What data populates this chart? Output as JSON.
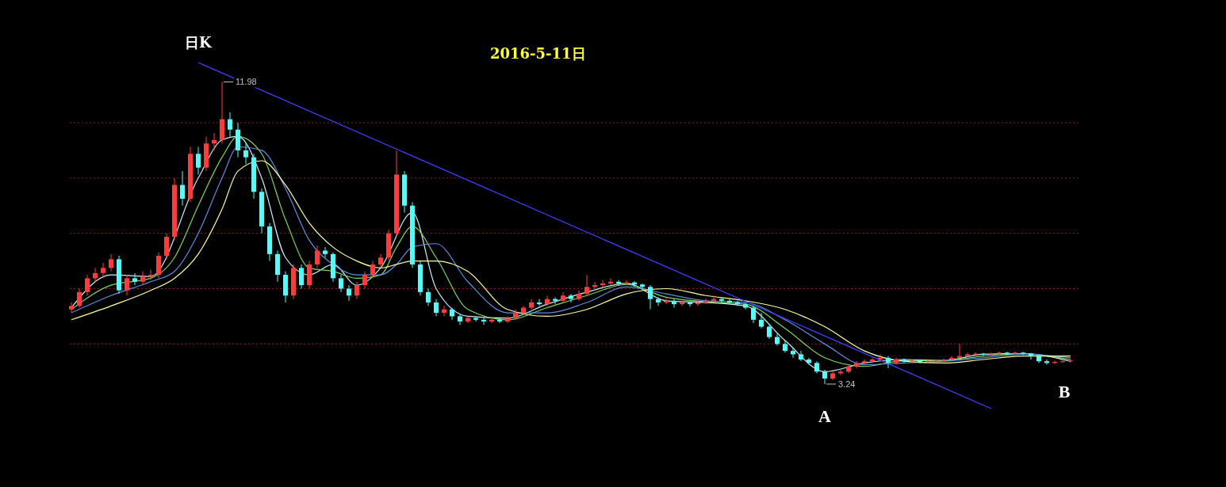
{
  "chart_data": {
    "type": "candlestick",
    "title": "日K",
    "subtitle": "2016-5-11日",
    "categories": [
      null,
      null,
      null,
      null,
      null,
      null,
      null,
      null,
      null,
      null,
      null,
      null,
      null,
      null,
      null,
      null,
      null,
      null,
      null,
      null,
      null,
      null,
      null,
      null,
      null,
      null,
      null,
      null,
      null,
      null,
      null,
      null,
      null,
      null,
      null,
      null,
      null,
      null,
      null,
      null,
      null,
      null,
      null,
      null,
      null,
      null,
      null,
      null,
      null,
      null,
      null,
      null,
      null,
      null,
      null,
      null,
      null,
      null,
      null,
      null,
      null,
      null,
      null,
      null,
      null,
      null,
      null,
      null,
      null,
      null,
      null,
      null,
      null,
      null,
      null,
      null,
      null,
      null,
      null,
      null,
      null,
      null,
      null,
      null,
      null,
      null,
      null,
      null,
      null,
      null,
      null,
      null,
      null,
      null,
      null,
      null,
      null,
      null,
      null,
      null,
      null,
      null,
      null,
      null,
      null,
      null,
      null,
      null,
      null,
      null,
      null,
      null,
      null,
      null,
      null,
      null,
      null,
      null,
      null,
      null,
      null,
      null,
      null,
      null,
      null,
      null,
      null
    ],
    "ohlc": [
      [
        5.4,
        5.6,
        5.3,
        5.5
      ],
      [
        5.5,
        6.0,
        5.45,
        5.9
      ],
      [
        5.9,
        6.4,
        5.8,
        6.3
      ],
      [
        6.3,
        6.6,
        6.2,
        6.45
      ],
      [
        6.45,
        6.75,
        6.3,
        6.6
      ],
      [
        6.6,
        7.0,
        6.5,
        6.85
      ],
      [
        6.85,
        6.95,
        5.85,
        5.95
      ],
      [
        5.95,
        6.4,
        5.8,
        6.3
      ],
      [
        6.3,
        6.45,
        6.1,
        6.2
      ],
      [
        6.2,
        6.5,
        6.1,
        6.35
      ],
      [
        6.35,
        6.55,
        6.25,
        6.4
      ],
      [
        6.4,
        7.05,
        6.3,
        6.95
      ],
      [
        6.95,
        7.6,
        6.85,
        7.5
      ],
      [
        7.5,
        9.2,
        7.4,
        9.0
      ],
      [
        9.0,
        9.4,
        8.4,
        8.6
      ],
      [
        8.6,
        10.1,
        8.5,
        9.9
      ],
      [
        9.9,
        10.1,
        9.3,
        9.5
      ],
      [
        9.5,
        10.4,
        9.4,
        10.2
      ],
      [
        10.2,
        10.5,
        10.0,
        10.3
      ],
      [
        10.3,
        11.98,
        10.2,
        10.9
      ],
      [
        10.9,
        11.1,
        10.4,
        10.6
      ],
      [
        10.6,
        10.8,
        9.8,
        10.0
      ],
      [
        10.0,
        10.2,
        9.6,
        9.8
      ],
      [
        9.8,
        9.9,
        8.6,
        8.8
      ],
      [
        8.8,
        8.9,
        7.6,
        7.8
      ],
      [
        7.8,
        7.9,
        6.8,
        7.0
      ],
      [
        7.0,
        7.1,
        6.2,
        6.4
      ],
      [
        6.4,
        6.5,
        5.6,
        5.8
      ],
      [
        5.8,
        6.7,
        5.7,
        6.6
      ],
      [
        6.6,
        6.7,
        6.0,
        6.1
      ],
      [
        6.1,
        6.8,
        6.0,
        6.7
      ],
      [
        6.7,
        7.25,
        6.6,
        7.1
      ],
      [
        7.1,
        7.2,
        6.9,
        7.0
      ],
      [
        7.0,
        7.05,
        6.2,
        6.3
      ],
      [
        6.3,
        6.4,
        5.9,
        6.0
      ],
      [
        6.0,
        6.1,
        5.65,
        5.8
      ],
      [
        5.8,
        6.2,
        5.7,
        6.1
      ],
      [
        6.1,
        6.5,
        6.0,
        6.4
      ],
      [
        6.4,
        6.8,
        6.3,
        6.7
      ],
      [
        6.7,
        7.0,
        6.6,
        6.9
      ],
      [
        6.9,
        7.7,
        6.8,
        7.6
      ],
      [
        7.6,
        9.99,
        7.5,
        9.3
      ],
      [
        9.3,
        9.4,
        8.2,
        8.4
      ],
      [
        8.4,
        8.5,
        6.6,
        6.7
      ],
      [
        6.7,
        6.8,
        5.8,
        5.9
      ],
      [
        5.9,
        6.0,
        5.5,
        5.6
      ],
      [
        5.6,
        5.7,
        5.2,
        5.3
      ],
      [
        5.3,
        5.5,
        5.2,
        5.4
      ],
      [
        5.4,
        5.45,
        5.1,
        5.2
      ],
      [
        5.2,
        5.25,
        4.95,
        5.05
      ],
      [
        5.05,
        5.2,
        5.0,
        5.15
      ],
      [
        5.15,
        5.2,
        5.05,
        5.1
      ],
      [
        5.1,
        5.15,
        4.95,
        5.05
      ],
      [
        5.05,
        5.15,
        5.0,
        5.1
      ],
      [
        5.1,
        5.15,
        5.0,
        5.05
      ],
      [
        5.05,
        5.2,
        5.0,
        5.15
      ],
      [
        5.15,
        5.4,
        5.1,
        5.3
      ],
      [
        5.3,
        5.5,
        5.25,
        5.45
      ],
      [
        5.45,
        5.7,
        5.4,
        5.6
      ],
      [
        5.6,
        5.7,
        5.5,
        5.55
      ],
      [
        5.55,
        5.8,
        5.5,
        5.7
      ],
      [
        5.7,
        5.75,
        5.55,
        5.65
      ],
      [
        5.65,
        5.9,
        5.6,
        5.8
      ],
      [
        5.8,
        5.85,
        5.6,
        5.7
      ],
      [
        5.7,
        5.95,
        5.65,
        5.85
      ],
      [
        5.85,
        6.4,
        5.8,
        6.05
      ],
      [
        6.05,
        6.2,
        5.95,
        6.1
      ],
      [
        6.1,
        6.25,
        6.05,
        6.15
      ],
      [
        6.15,
        6.3,
        6.1,
        6.2
      ],
      [
        6.2,
        6.25,
        6.1,
        6.15
      ],
      [
        6.15,
        6.25,
        6.1,
        6.18
      ],
      [
        6.18,
        6.22,
        6.05,
        6.12
      ],
      [
        6.12,
        6.15,
        6.0,
        6.05
      ],
      [
        6.05,
        6.1,
        5.4,
        5.7
      ],
      [
        5.7,
        5.75,
        5.5,
        5.6
      ],
      [
        5.6,
        5.72,
        5.55,
        5.65
      ],
      [
        5.65,
        5.7,
        5.45,
        5.55
      ],
      [
        5.55,
        5.65,
        5.5,
        5.6
      ],
      [
        5.6,
        5.62,
        5.48,
        5.55
      ],
      [
        5.55,
        5.65,
        5.5,
        5.6
      ],
      [
        5.6,
        5.72,
        5.55,
        5.65
      ],
      [
        5.65,
        5.8,
        5.6,
        5.7
      ],
      [
        5.7,
        5.75,
        5.6,
        5.65
      ],
      [
        5.65,
        5.7,
        5.55,
        5.6
      ],
      [
        5.6,
        5.65,
        5.5,
        5.55
      ],
      [
        5.55,
        5.6,
        5.4,
        5.45
      ],
      [
        5.45,
        5.5,
        5.0,
        5.1
      ],
      [
        5.1,
        5.3,
        4.85,
        4.9
      ],
      [
        4.9,
        4.95,
        4.55,
        4.6
      ],
      [
        4.6,
        4.7,
        4.35,
        4.4
      ],
      [
        4.4,
        4.5,
        4.15,
        4.2
      ],
      [
        4.2,
        4.3,
        4.0,
        4.1
      ],
      [
        4.1,
        4.2,
        3.9,
        3.95
      ],
      [
        3.95,
        4.0,
        3.8,
        3.85
      ],
      [
        3.85,
        3.9,
        3.55,
        3.6
      ],
      [
        3.6,
        3.65,
        3.24,
        3.4
      ],
      [
        3.4,
        3.6,
        3.35,
        3.55
      ],
      [
        3.55,
        3.65,
        3.5,
        3.6
      ],
      [
        3.6,
        3.8,
        3.55,
        3.75
      ],
      [
        3.75,
        3.9,
        3.7,
        3.85
      ],
      [
        3.85,
        3.95,
        3.8,
        3.9
      ],
      [
        3.9,
        4.0,
        3.85,
        3.95
      ],
      [
        3.95,
        4.1,
        3.9,
        4.0
      ],
      [
        4.0,
        4.05,
        3.7,
        3.85
      ],
      [
        3.85,
        4.0,
        3.8,
        3.95
      ],
      [
        3.95,
        3.98,
        3.85,
        3.9
      ],
      [
        3.9,
        3.95,
        3.86,
        3.92
      ],
      [
        3.92,
        3.94,
        3.84,
        3.88
      ],
      [
        3.88,
        3.94,
        3.85,
        3.9
      ],
      [
        3.9,
        3.95,
        3.87,
        3.92
      ],
      [
        3.92,
        3.98,
        3.9,
        3.95
      ],
      [
        3.95,
        4.05,
        3.92,
        4.0
      ],
      [
        4.0,
        4.4,
        3.98,
        4.05
      ],
      [
        4.05,
        4.15,
        4.02,
        4.1
      ],
      [
        4.1,
        4.16,
        4.08,
        4.12
      ],
      [
        4.12,
        4.14,
        4.06,
        4.1
      ],
      [
        4.1,
        4.15,
        4.08,
        4.12
      ],
      [
        4.12,
        4.18,
        4.1,
        4.15
      ],
      [
        4.15,
        4.17,
        4.08,
        4.12
      ],
      [
        4.12,
        4.18,
        4.1,
        4.15
      ],
      [
        4.15,
        4.17,
        4.08,
        4.12
      ],
      [
        4.12,
        4.14,
        3.95,
        4.05
      ],
      [
        4.05,
        4.08,
        3.85,
        3.9
      ],
      [
        3.9,
        3.95,
        3.8,
        3.85
      ],
      [
        3.85,
        3.92,
        3.82,
        3.88
      ],
      [
        3.88,
        3.94,
        3.85,
        3.9
      ],
      [
        3.9,
        3.96,
        3.86,
        3.92
      ]
    ],
    "series": [
      {
        "type": "line",
        "color": "#c8f0ff",
        "values": [
          5.45,
          null,
          null,
          null,
          null,
          6.4,
          null,
          null,
          null,
          null,
          6.35,
          null,
          null,
          null,
          null,
          null,
          9.2,
          null,
          null,
          10.3,
          null,
          10.4,
          null,
          null,
          9.2,
          null,
          null,
          6.9,
          null,
          null,
          6.4,
          null,
          null,
          6.7,
          null,
          null,
          6.1,
          null,
          null,
          6.6,
          null,
          null,
          null,
          8.2,
          null,
          null,
          6.0,
          null,
          null,
          null,
          5.2,
          null,
          null,
          null,
          null,
          5.15,
          null,
          null,
          null,
          null,
          5.55,
          null,
          null,
          null,
          null,
          5.9,
          null,
          null,
          null,
          null,
          6.15,
          null,
          null,
          null,
          null,
          5.65,
          null,
          null,
          null,
          null,
          5.6,
          null,
          null,
          null,
          null,
          5.5,
          null,
          null,
          null,
          null,
          4.5,
          null,
          null,
          null,
          null,
          3.6,
          null,
          null,
          null,
          null,
          3.85,
          null,
          null,
          null,
          null,
          3.95,
          null,
          null,
          null,
          null,
          3.92,
          null,
          null,
          null,
          null,
          4.1,
          null,
          null,
          null,
          null,
          4.12,
          null,
          null,
          null,
          null,
          null,
          3.9
        ]
      },
      {
        "type": "line",
        "color": "#7ed957",
        "values": [
          5.4,
          null,
          null,
          null,
          null,
          6.1,
          null,
          null,
          null,
          null,
          6.3,
          null,
          null,
          6.9,
          null,
          null,
          8.4,
          null,
          null,
          9.8,
          null,
          10.4,
          null,
          null,
          9.9,
          null,
          null,
          8.0,
          null,
          null,
          6.6,
          null,
          null,
          6.5,
          null,
          null,
          6.3,
          null,
          null,
          6.4,
          null,
          7.2,
          null,
          7.8,
          null,
          null,
          6.9,
          null,
          null,
          null,
          5.4,
          null,
          null,
          null,
          null,
          5.1,
          null,
          null,
          null,
          null,
          5.45,
          null,
          null,
          null,
          null,
          5.8,
          null,
          null,
          null,
          null,
          6.12,
          null,
          null,
          null,
          null,
          5.75,
          null,
          null,
          null,
          null,
          5.62,
          null,
          null,
          null,
          null,
          5.55,
          null,
          null,
          null,
          null,
          4.85,
          null,
          null,
          null,
          null,
          4.0,
          null,
          null,
          null,
          null,
          3.75,
          null,
          null,
          null,
          null,
          3.92,
          null,
          null,
          null,
          null,
          3.92,
          null,
          null,
          null,
          null,
          4.05,
          null,
          null,
          null,
          null,
          4.12,
          null,
          null,
          null,
          null,
          null,
          3.95
        ]
      },
      {
        "type": "line",
        "color": "#5b8fe0",
        "values": [
          5.3,
          null,
          null,
          null,
          null,
          5.8,
          null,
          null,
          null,
          null,
          6.2,
          null,
          null,
          6.5,
          null,
          null,
          7.6,
          null,
          null,
          9.2,
          null,
          10.1,
          null,
          null,
          10.0,
          null,
          null,
          8.9,
          null,
          null,
          7.4,
          null,
          null,
          6.7,
          null,
          null,
          6.4,
          null,
          null,
          6.4,
          null,
          6.7,
          null,
          7.2,
          null,
          null,
          7.3,
          null,
          null,
          null,
          6.2,
          null,
          null,
          null,
          null,
          5.3,
          null,
          null,
          null,
          null,
          5.3,
          null,
          null,
          null,
          null,
          5.6,
          null,
          null,
          null,
          null,
          6.05,
          null,
          null,
          null,
          null,
          5.85,
          null,
          null,
          null,
          null,
          5.65,
          null,
          null,
          null,
          null,
          5.6,
          null,
          null,
          null,
          null,
          5.1,
          null,
          null,
          null,
          null,
          4.4,
          null,
          null,
          null,
          null,
          3.8,
          null,
          null,
          null,
          null,
          3.85,
          null,
          null,
          null,
          null,
          3.9,
          null,
          null,
          null,
          null,
          4.0,
          null,
          null,
          null,
          null,
          4.1,
          null,
          null,
          null,
          null,
          null,
          4.0
        ]
      },
      {
        "type": "line",
        "color": "#ffffa0",
        "values": [
          5.1,
          null,
          null,
          null,
          null,
          5.5,
          null,
          null,
          null,
          null,
          5.95,
          null,
          null,
          6.3,
          null,
          null,
          7.0,
          null,
          null,
          8.3,
          null,
          9.4,
          null,
          null,
          9.7,
          null,
          null,
          9.0,
          null,
          null,
          7.9,
          null,
          null,
          7.2,
          null,
          null,
          6.8,
          null,
          null,
          6.6,
          null,
          6.7,
          null,
          6.8,
          null,
          null,
          6.8,
          null,
          null,
          null,
          6.5,
          null,
          null,
          null,
          null,
          5.4,
          null,
          null,
          null,
          null,
          5.2,
          null,
          null,
          null,
          null,
          5.4,
          null,
          null,
          null,
          null,
          5.85,
          null,
          null,
          null,
          null,
          6.0,
          null,
          null,
          null,
          null,
          5.8,
          null,
          null,
          null,
          null,
          5.65,
          null,
          null,
          null,
          null,
          5.4,
          null,
          null,
          null,
          null,
          4.9,
          null,
          null,
          null,
          null,
          4.2,
          null,
          null,
          null,
          null,
          3.9,
          null,
          null,
          null,
          null,
          3.85,
          null,
          null,
          null,
          null,
          3.95,
          null,
          null,
          null,
          null,
          4.05,
          null,
          null,
          null,
          null,
          null,
          4.05
        ]
      },
      {
        "type": "line",
        "color": "#4040ff",
        "values": [
          null,
          null,
          null,
          null,
          null,
          null,
          null,
          null,
          null,
          null,
          null,
          null,
          null,
          null,
          null,
          null,
          12.54,
          null,
          null,
          null,
          null,
          null,
          null,
          null,
          null,
          null,
          null,
          null,
          null,
          null,
          null,
          null,
          null,
          null,
          null,
          null,
          null,
          null,
          null,
          null,
          null,
          null,
          null,
          null,
          null,
          null,
          null,
          null,
          null,
          null,
          null,
          null,
          null,
          null,
          null,
          null,
          null,
          null,
          null,
          null,
          null,
          null,
          null,
          null,
          null,
          null,
          null,
          null,
          null,
          null,
          null,
          null,
          null,
          null,
          null,
          null,
          null,
          null,
          null,
          null,
          null,
          null,
          null,
          null,
          null,
          null,
          null,
          null,
          null,
          null,
          null,
          null,
          null,
          null,
          null,
          null,
          null,
          null,
          null,
          null,
          null,
          null,
          null,
          null,
          null,
          null,
          null,
          null,
          null,
          null,
          null,
          null,
          null,
          null,
          null,
          null,
          2.53,
          null,
          null,
          null,
          null,
          null,
          null,
          null,
          null,
          null,
          null
        ]
      }
    ],
    "yticks": [
      {
        "value": 4.4,
        "label": null
      },
      {
        "value": 6.0,
        "label": null
      },
      {
        "value": 7.6,
        "label": null
      },
      {
        "value": 9.2,
        "label": null
      },
      {
        "value": 10.8,
        "label": null
      }
    ],
    "grid": "y",
    "annotations": [
      "11.98",
      "3.24",
      "A",
      "B"
    ]
  }
}
